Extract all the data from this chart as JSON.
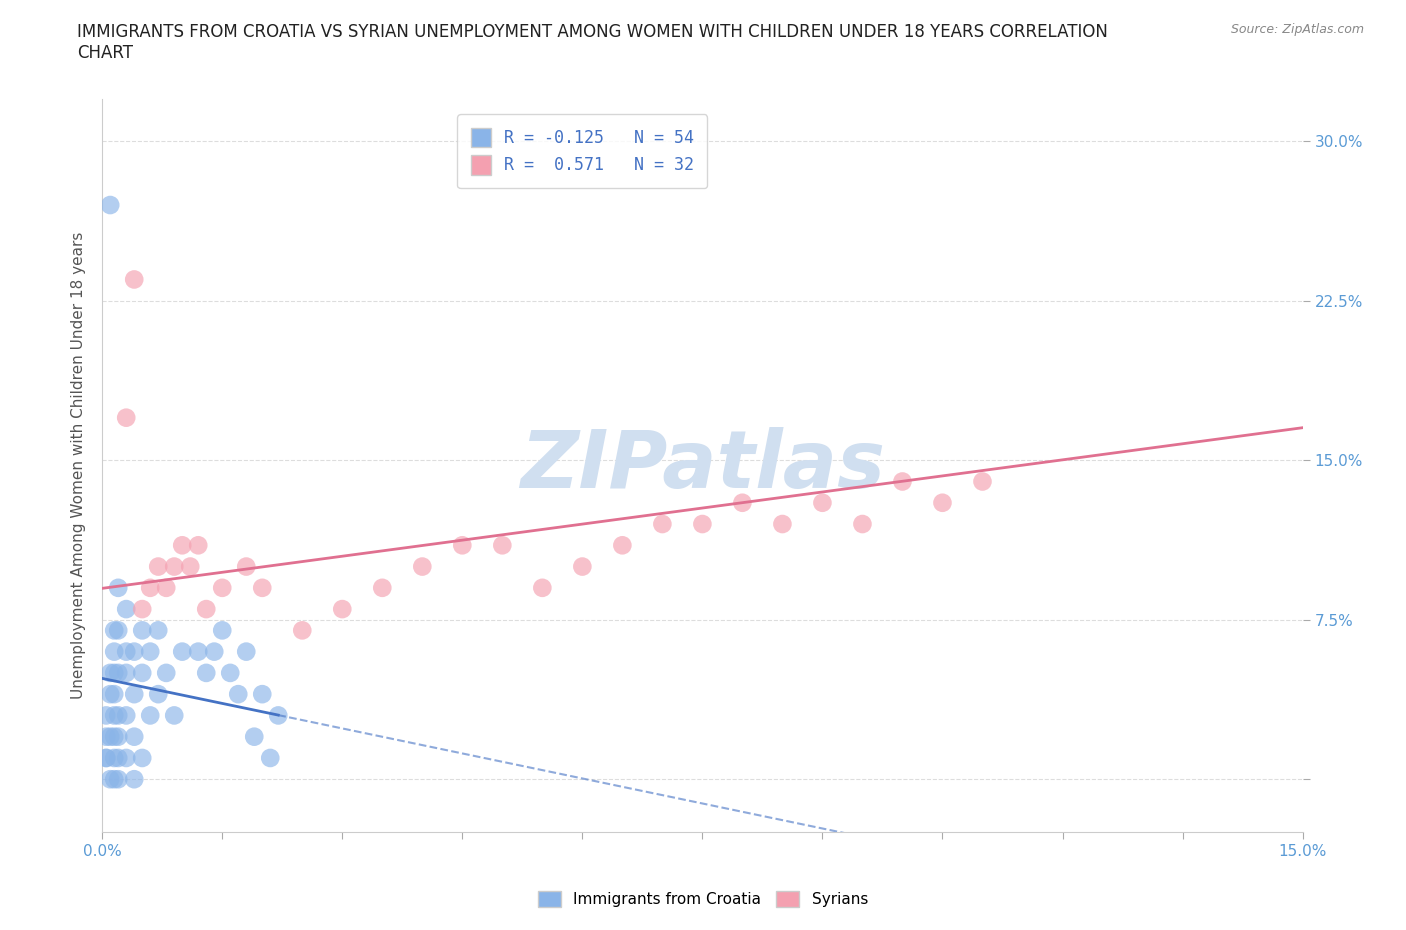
{
  "title": "IMMIGRANTS FROM CROATIA VS SYRIAN UNEMPLOYMENT AMONG WOMEN WITH CHILDREN UNDER 18 YEARS CORRELATION\nCHART",
  "source": "Source: ZipAtlas.com",
  "ylabel": "Unemployment Among Women with Children Under 18 years",
  "xlim": [
    0.0,
    0.15
  ],
  "ylim": [
    -0.025,
    0.32
  ],
  "yticks": [
    0.0,
    0.075,
    0.15,
    0.225,
    0.3
  ],
  "ytick_labels": [
    "",
    "7.5%",
    "15.0%",
    "22.5%",
    "30.0%"
  ],
  "xticks": [
    0.0,
    0.015,
    0.03,
    0.045,
    0.06,
    0.075,
    0.09,
    0.105,
    0.12,
    0.135,
    0.15
  ],
  "xtick_labels": [
    "0.0%",
    "",
    "",
    "",
    "",
    "",
    "",
    "",
    "",
    "",
    "15.0%"
  ],
  "croatia_color": "#8ab4e8",
  "syrian_color": "#f4a0b0",
  "croatia_line_color": "#4472c4",
  "syrian_line_color": "#e07090",
  "croatia_R": -0.125,
  "croatia_N": 54,
  "syrian_R": 0.571,
  "syrian_N": 32,
  "croatia_scatter_x": [
    0.0015,
    0.0015,
    0.0015,
    0.0015,
    0.0015,
    0.0015,
    0.0015,
    0.0015,
    0.002,
    0.002,
    0.002,
    0.002,
    0.002,
    0.002,
    0.002,
    0.003,
    0.003,
    0.003,
    0.003,
    0.003,
    0.004,
    0.004,
    0.004,
    0.004,
    0.005,
    0.005,
    0.005,
    0.006,
    0.006,
    0.007,
    0.007,
    0.008,
    0.009,
    0.01,
    0.012,
    0.013,
    0.014,
    0.015,
    0.016,
    0.017,
    0.018,
    0.001,
    0.001,
    0.001,
    0.001,
    0.001,
    0.0005,
    0.0005,
    0.0005,
    0.0005,
    0.019,
    0.02,
    0.021,
    0.022
  ],
  "croatia_scatter_y": [
    0.02,
    0.03,
    0.04,
    0.05,
    0.06,
    0.0,
    0.01,
    0.07,
    0.0,
    0.01,
    0.03,
    0.05,
    0.07,
    0.09,
    0.02,
    0.01,
    0.03,
    0.05,
    0.06,
    0.08,
    0.02,
    0.04,
    0.06,
    0.0,
    0.01,
    0.05,
    0.07,
    0.03,
    0.06,
    0.04,
    0.07,
    0.05,
    0.03,
    0.06,
    0.06,
    0.05,
    0.06,
    0.07,
    0.05,
    0.04,
    0.06,
    0.0,
    0.02,
    0.04,
    0.05,
    0.27,
    0.01,
    0.02,
    0.03,
    0.01,
    0.02,
    0.04,
    0.01,
    0.03
  ],
  "syrian_scatter_x": [
    0.003,
    0.004,
    0.005,
    0.006,
    0.007,
    0.008,
    0.009,
    0.01,
    0.011,
    0.012,
    0.013,
    0.015,
    0.018,
    0.02,
    0.025,
    0.03,
    0.035,
    0.04,
    0.045,
    0.05,
    0.055,
    0.06,
    0.065,
    0.07,
    0.075,
    0.08,
    0.085,
    0.09,
    0.095,
    0.1,
    0.105,
    0.11
  ],
  "syrian_scatter_y": [
    0.17,
    0.235,
    0.08,
    0.09,
    0.1,
    0.09,
    0.1,
    0.11,
    0.1,
    0.11,
    0.08,
    0.09,
    0.1,
    0.09,
    0.07,
    0.08,
    0.09,
    0.1,
    0.11,
    0.11,
    0.09,
    0.1,
    0.11,
    0.12,
    0.12,
    0.13,
    0.12,
    0.13,
    0.12,
    0.14,
    0.13,
    0.14
  ],
  "background_color": "#ffffff",
  "grid_color": "#dddddd",
  "tick_color": "#5b9bd5",
  "watermark": "ZIPatlas",
  "watermark_color": "#d0dff0"
}
